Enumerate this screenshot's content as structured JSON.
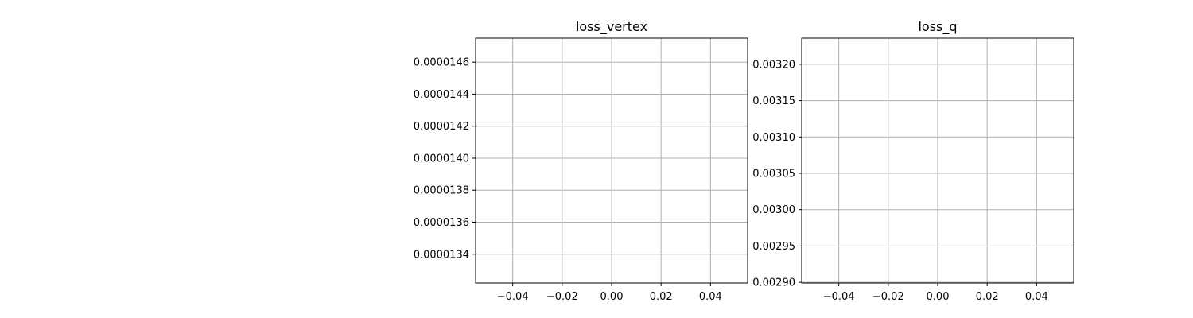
{
  "chart_data": [
    {
      "type": "line",
      "title": "loss_vertex",
      "xlabel": "",
      "ylabel": "",
      "grid": true,
      "xlim": [
        -0.055,
        0.055
      ],
      "ylim": [
        1.322e-05,
        1.475e-05
      ],
      "xticks": [
        -0.04,
        -0.02,
        0.0,
        0.02,
        0.04
      ],
      "xtick_labels": [
        "−0.04",
        "−0.02",
        "0.00",
        "0.02",
        "0.04"
      ],
      "yticks": [
        1.34e-05,
        1.36e-05,
        1.38e-05,
        1.4e-05,
        1.42e-05,
        1.44e-05,
        1.46e-05
      ],
      "ytick_labels": [
        "0.0000134",
        "0.0000136",
        "0.0000138",
        "0.0000140",
        "0.0000142",
        "0.0000144",
        "0.0000146"
      ],
      "series": []
    },
    {
      "type": "line",
      "title": "loss_q",
      "xlabel": "",
      "ylabel": "",
      "grid": true,
      "xlim": [
        -0.055,
        0.055
      ],
      "ylim": [
        0.002899,
        0.003236
      ],
      "xticks": [
        -0.04,
        -0.02,
        0.0,
        0.02,
        0.04
      ],
      "xtick_labels": [
        "−0.04",
        "−0.02",
        "0.00",
        "0.02",
        "0.04"
      ],
      "yticks": [
        0.0029,
        0.00295,
        0.003,
        0.00305,
        0.0031,
        0.00315,
        0.0032
      ],
      "ytick_labels": [
        "0.00290",
        "0.00295",
        "0.00300",
        "0.00305",
        "0.00310",
        "0.00315",
        "0.00320"
      ],
      "series": []
    }
  ]
}
